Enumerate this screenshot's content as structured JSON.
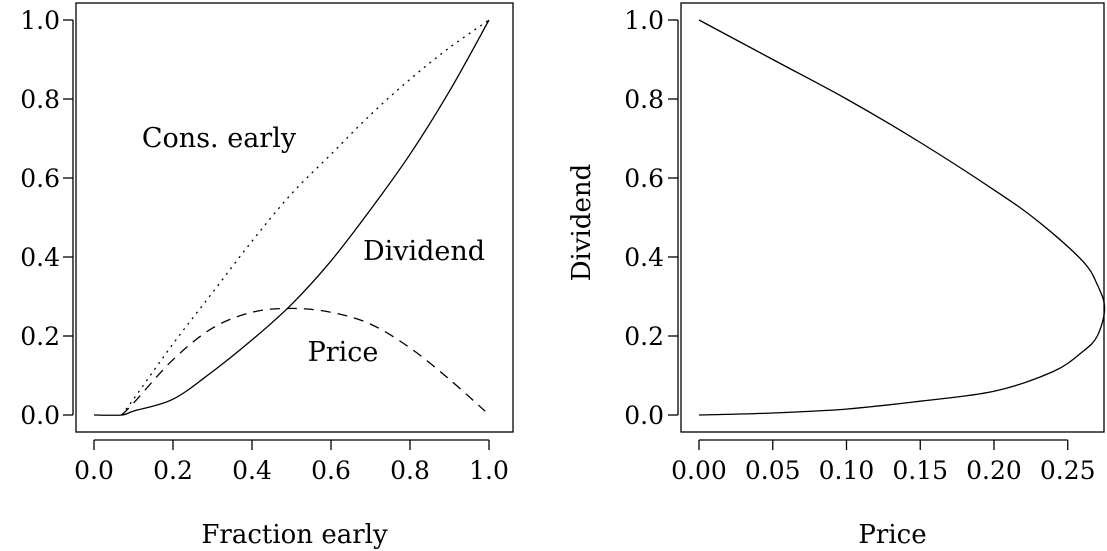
{
  "chart_data": [
    {
      "type": "line",
      "xlabel": "Fraction early",
      "ylabel": "",
      "xlim": [
        0,
        1
      ],
      "ylim": [
        0,
        1
      ],
      "xticks": [
        "0.0",
        "0.2",
        "0.4",
        "0.6",
        "0.8",
        "1.0"
      ],
      "yticks": [
        "0.0",
        "0.2",
        "0.4",
        "0.6",
        "0.8",
        "1.0"
      ],
      "annotations": [
        "Cons. early",
        "Dividend",
        "Price"
      ],
      "series": [
        {
          "name": "Dividend",
          "style": "solid",
          "x": [
            0.0,
            0.07,
            0.1,
            0.2,
            0.3,
            0.4,
            0.5,
            0.6,
            0.7,
            0.8,
            0.9,
            1.0
          ],
          "y": [
            0.0,
            0.0,
            0.01,
            0.04,
            0.11,
            0.19,
            0.28,
            0.39,
            0.52,
            0.66,
            0.82,
            1.0
          ]
        },
        {
          "name": "Cons. early",
          "style": "dotted",
          "x": [
            0.07,
            0.1,
            0.2,
            0.3,
            0.4,
            0.5,
            0.6,
            0.7,
            0.8,
            0.9,
            1.0
          ],
          "y": [
            0.0,
            0.04,
            0.18,
            0.31,
            0.44,
            0.56,
            0.66,
            0.76,
            0.85,
            0.93,
            1.0
          ]
        },
        {
          "name": "Price",
          "style": "dashed",
          "x": [
            0.07,
            0.1,
            0.2,
            0.3,
            0.4,
            0.5,
            0.6,
            0.7,
            0.8,
            0.9,
            0.99
          ],
          "y": [
            0.0,
            0.03,
            0.14,
            0.22,
            0.26,
            0.27,
            0.26,
            0.23,
            0.17,
            0.09,
            0.01
          ]
        }
      ]
    },
    {
      "type": "line",
      "xlabel": "Price",
      "ylabel": "Dividend",
      "xlim": [
        0,
        0.28
      ],
      "ylim": [
        0,
        1
      ],
      "xticks": [
        "0.00",
        "0.05",
        "0.10",
        "0.15",
        "0.20",
        "0.25"
      ],
      "yticks": [
        "0.0",
        "0.2",
        "0.4",
        "0.6",
        "0.8",
        "1.0"
      ],
      "series": [
        {
          "style": "solid",
          "x": [
            0.0,
            0.05,
            0.1,
            0.15,
            0.2,
            0.24,
            0.26,
            0.27,
            0.275,
            0.27,
            0.26,
            0.23,
            0.2,
            0.15,
            0.1,
            0.05,
            0.0
          ],
          "y": [
            0.0,
            0.005,
            0.015,
            0.035,
            0.06,
            0.11,
            0.16,
            0.2,
            0.27,
            0.33,
            0.39,
            0.49,
            0.57,
            0.69,
            0.8,
            0.9,
            1.0
          ]
        }
      ]
    }
  ]
}
